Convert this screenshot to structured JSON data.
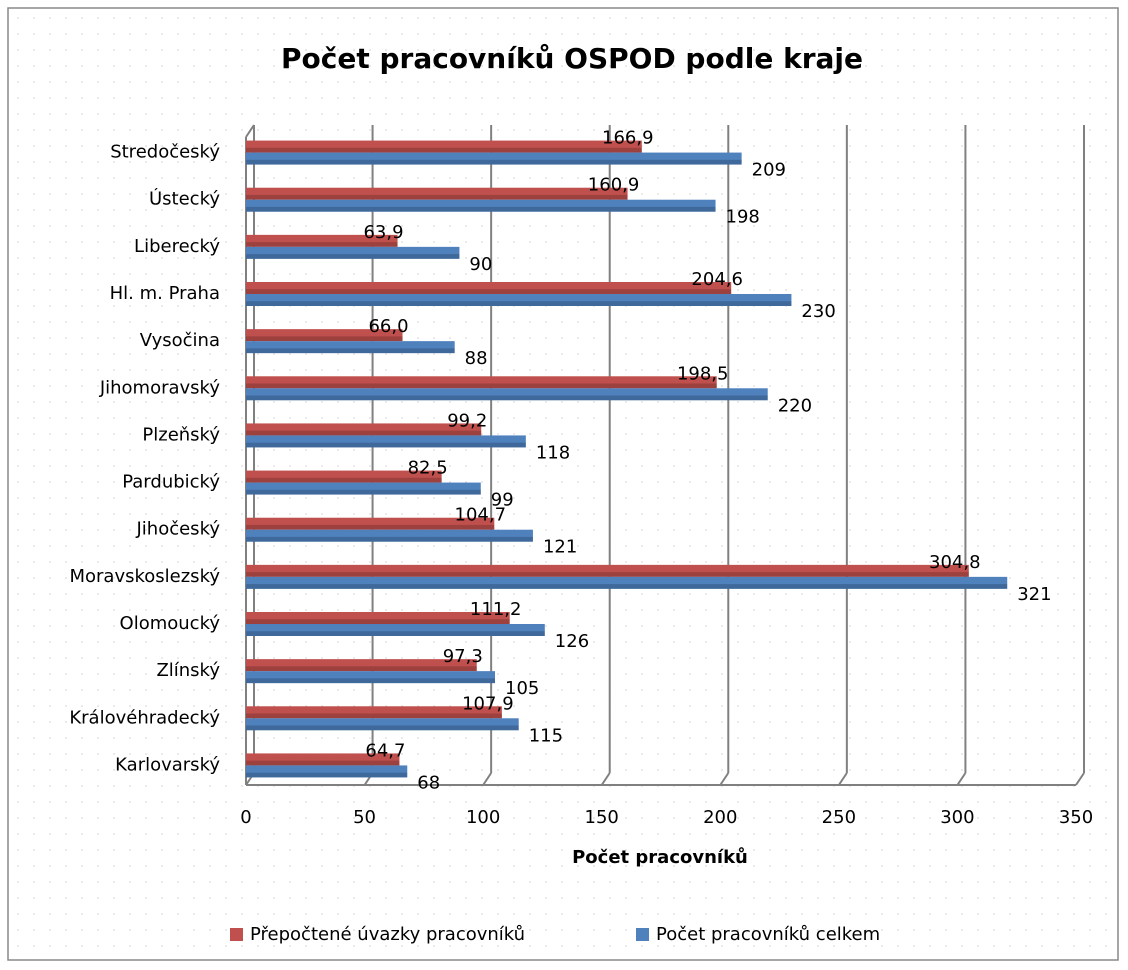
{
  "chart_data": {
    "type": "bar",
    "orientation": "horizontal",
    "title": "Počet pracovníků OSPOD podle kraje",
    "x_label": "Počet pracovníků",
    "categories": [
      "Stredočeský",
      "Ústecký",
      "Liberecký",
      "Hl. m. Praha",
      "Vysočina",
      "Jihomoravský",
      "Plzeňský",
      "Pardubický",
      "Jihočeský",
      "Moravskoslezský",
      "Olomoucký",
      "Zlínský",
      "Královéhradecký",
      "Karlovarský"
    ],
    "series": [
      {
        "name": "Přepočtené úvazky pracovníků",
        "color": "#c0504d",
        "values": [
          166.9,
          160.9,
          63.9,
          204.6,
          66.0,
          198.5,
          99.2,
          82.5,
          104.7,
          304.8,
          111.2,
          97.3,
          107.9,
          64.7
        ],
        "value_labels": [
          "166,9",
          "160,9",
          "63,9",
          "204,6",
          "66,0",
          "198,5",
          "99,2",
          "82,5",
          "104,7",
          "304,8",
          "111,2",
          "97,3",
          "107,9",
          "64,7"
        ]
      },
      {
        "name": "Počet pracovníků celkem",
        "color": "#4f81bd",
        "values": [
          209,
          198,
          90,
          230,
          88,
          220,
          118,
          99,
          121,
          321,
          126,
          105,
          115,
          68
        ]
      }
    ],
    "xlim": [
      0,
      350
    ],
    "xticks": [
      0,
      50,
      100,
      150,
      200,
      250,
      300,
      350
    ],
    "grid": true,
    "legend": "bottom"
  }
}
